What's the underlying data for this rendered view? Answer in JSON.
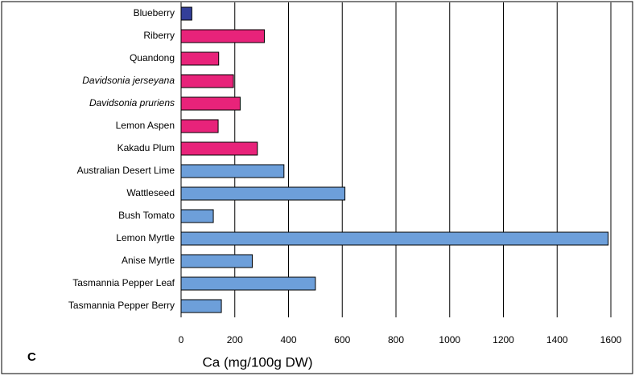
{
  "chart_data": {
    "type": "hbar",
    "panel_label": "C",
    "x_label": "Ca (mg/100g DW)",
    "categories": [
      "Blueberry",
      "Riberry",
      "Quandong",
      "Davidsonia jerseyana",
      "Davidsonia pruriens",
      "Lemon Aspen",
      "Kakadu Plum",
      "Australian Desert Lime",
      "Wattleseed",
      "Bush Tomato",
      "Lemon Myrtle",
      "Anise Myrtle",
      "Tasmannia Pepper Leaf",
      "Tasmannia Pepper Berry"
    ],
    "label_styles": [
      "normal",
      "normal",
      "normal",
      "italic",
      "italic",
      "normal",
      "normal",
      "normal",
      "normal",
      "normal",
      "normal",
      "normal",
      "normal",
      "normal"
    ],
    "values": [
      40,
      310,
      140,
      195,
      220,
      138,
      284,
      383,
      610,
      120,
      1590,
      265,
      500,
      150
    ],
    "colors": [
      "#333f99",
      "#e8237a",
      "#e8237a",
      "#e8237a",
      "#e8237a",
      "#e8237a",
      "#e8237a",
      "#6d9fda",
      "#6d9fda",
      "#6d9fda",
      "#6d9fda",
      "#6d9fda",
      "#6d9fda",
      "#6d9fda"
    ],
    "xlim": [
      0,
      1600
    ],
    "xticks": [
      0,
      200,
      400,
      600,
      800,
      1000,
      1200,
      1400,
      1600
    ],
    "grid": true
  }
}
